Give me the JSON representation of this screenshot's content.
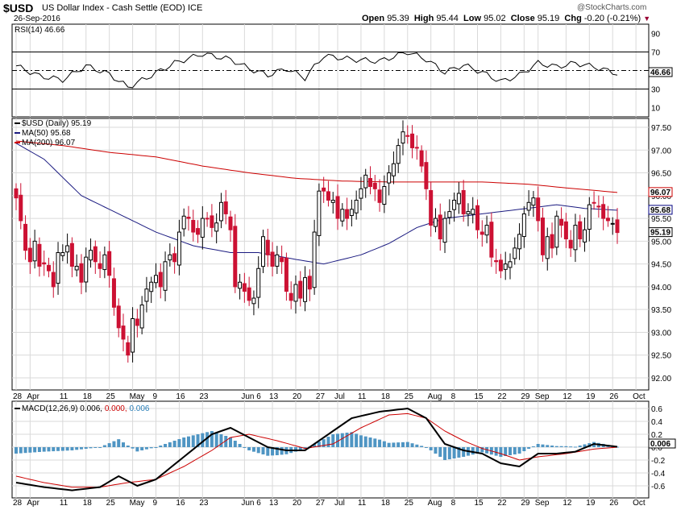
{
  "header": {
    "symbol": "$USD",
    "name": "US Dollar Index - Cash Settle (EOD) ICE",
    "date": "26-Sep-2016",
    "watermark": "@StockCharts.com",
    "stats": [
      {
        "label": "Open",
        "value": "95.39"
      },
      {
        "label": "High",
        "value": "95.44"
      },
      {
        "label": "Low",
        "value": "95.02"
      },
      {
        "label": "Close",
        "value": "95.19"
      },
      {
        "label": "Chg",
        "value": "-0.20 (-0.21%)"
      }
    ]
  },
  "rsi": {
    "label": "RSI(14) 46.66",
    "value_box": "46.66",
    "color": "#000000",
    "ref_color": "#000000"
  },
  "price_legend": {
    "main": "$USD (Daily) 95.19",
    "ma50": "MA(50) 95.68",
    "ma200": "MA(200) 96.07"
  },
  "macd": {
    "label": "MACD(12,26,9)",
    "v1": "0.006,",
    "v2": "0.000,",
    "v3": "0.006"
  },
  "price_boxes": [
    {
      "text": "96.07",
      "value": 96.07,
      "fill": "#ffffff",
      "stroke": "#cc0000"
    },
    {
      "text": "95.68",
      "value": 95.68,
      "fill": "#ffffff",
      "stroke": "#000080"
    },
    {
      "text": "95.19",
      "value": 95.19,
      "fill": "#ffffff",
      "stroke": "#000000"
    }
  ],
  "macd_box": {
    "text": "0.006",
    "value": 0.006
  },
  "colors": {
    "up": "#000000",
    "down": "#cc1133",
    "ma50": "#1a1a80",
    "ma200": "#cc0000",
    "macd": "#000000",
    "signal": "#cc0000",
    "hist": "#4f95c3",
    "grid": "#d9d9d9"
  },
  "chart_data": {
    "type": "candlestick",
    "title": "$USD US Dollar Index - Cash Settle (EOD) ICE",
    "x_ticks": [
      {
        "label": "28",
        "i": 0
      },
      {
        "label": "Apr",
        "i": 3
      },
      {
        "label": "11",
        "i": 10
      },
      {
        "label": "18",
        "i": 15
      },
      {
        "label": "25",
        "i": 20
      },
      {
        "label": "May",
        "i": 25
      },
      {
        "label": "9",
        "i": 30
      },
      {
        "label": "16",
        "i": 35
      },
      {
        "label": "23",
        "i": 40
      },
      {
        "label": "Jun 6",
        "i": 49
      },
      {
        "label": "13",
        "i": 55
      },
      {
        "label": "20",
        "i": 60
      },
      {
        "label": "27",
        "i": 65
      },
      {
        "label": "Jul",
        "i": 69
      },
      {
        "label": "11",
        "i": 74
      },
      {
        "label": "18",
        "i": 79
      },
      {
        "label": "25",
        "i": 84
      },
      {
        "label": "Aug",
        "i": 89
      },
      {
        "label": "8",
        "i": 94
      },
      {
        "label": "15",
        "i": 99
      },
      {
        "label": "22",
        "i": 104
      },
      {
        "label": "29",
        "i": 109
      },
      {
        "label": "Sep",
        "i": 112
      },
      {
        "label": "12",
        "i": 118
      },
      {
        "label": "19",
        "i": 123
      },
      {
        "label": "26",
        "i": 128
      },
      {
        "label": "Oct",
        "i": 133
      }
    ],
    "price_axis": {
      "min": 92.0,
      "max": 97.5,
      "step": 0.5
    },
    "rsi_axis": {
      "ticks": [
        10,
        30,
        50,
        70,
        90
      ],
      "overbought": 70,
      "oversold": 30
    },
    "macd_axis": {
      "ticks": [
        0.6,
        0.4,
        0.2,
        0.0,
        -0.2,
        -0.4,
        -0.6
      ]
    },
    "closes": [
      95.95,
      95.45,
      94.8,
      94.55,
      95.0,
      94.45,
      94.5,
      94.35,
      94.0,
      94.75,
      94.75,
      94.9,
      94.45,
      94.45,
      94.1,
      94.65,
      94.8,
      94.55,
      94.4,
      94.7,
      94.25,
      93.55,
      93.1,
      92.85,
      92.5,
      93.3,
      93.15,
      93.6,
      93.95,
      94.1,
      94.25,
      94.0,
      94.55,
      94.7,
      94.55,
      95.2,
      95.55,
      95.5,
      95.2,
      95.15,
      95.5,
      95.5,
      95.3,
      95.4,
      95.85,
      95.6,
      95.25,
      94.0,
      94.1,
      93.9,
      93.7,
      93.75,
      94.4,
      95.1,
      94.7,
      94.45,
      94.7,
      94.55,
      93.9,
      93.7,
      94.05,
      93.75,
      94.2,
      93.95,
      95.2,
      96.1,
      96.1,
      95.9,
      95.9,
      95.5,
      95.7,
      95.5,
      95.7,
      95.9,
      96.15,
      96.45,
      96.2,
      96.15,
      95.85,
      96.2,
      96.5,
      96.7,
      97.1,
      97.4,
      97.3,
      97.05,
      97.05,
      96.65,
      96.15,
      95.35,
      95.5,
      95.05,
      95.5,
      95.65,
      95.9,
      96.05,
      95.6,
      95.65,
      95.7,
      95.25,
      95.15,
      95.35,
      94.65,
      94.55,
      94.35,
      94.5,
      94.55,
      94.85,
      95.15,
      95.6,
      95.85,
      95.95,
      95.45,
      94.7,
      95.1,
      94.85,
      95.55,
      95.35,
      95.05,
      94.85,
      95.35,
      95.05,
      95.25,
      95.8,
      95.85,
      95.75,
      95.5,
      95.45,
      95.39,
      95.19
    ],
    "ma50_start": 97.15,
    "ma50_knots": [
      [
        0,
        97.15
      ],
      [
        6,
        96.8
      ],
      [
        14,
        96.0
      ],
      [
        22,
        95.6
      ],
      [
        30,
        95.2
      ],
      [
        38,
        94.9
      ],
      [
        46,
        94.75
      ],
      [
        52,
        94.75
      ],
      [
        60,
        94.6
      ],
      [
        66,
        94.5
      ],
      [
        74,
        94.7
      ],
      [
        80,
        94.95
      ],
      [
        86,
        95.3
      ],
      [
        92,
        95.5
      ],
      [
        100,
        95.6
      ],
      [
        108,
        95.7
      ],
      [
        116,
        95.8
      ],
      [
        122,
        95.72
      ],
      [
        129,
        95.68
      ]
    ],
    "ma200_knots": [
      [
        0,
        97.2
      ],
      [
        10,
        97.1
      ],
      [
        20,
        96.95
      ],
      [
        30,
        96.85
      ],
      [
        40,
        96.65
      ],
      [
        50,
        96.5
      ],
      [
        60,
        96.38
      ],
      [
        70,
        96.32
      ],
      [
        80,
        96.3
      ],
      [
        90,
        96.3
      ],
      [
        100,
        96.3
      ],
      [
        110,
        96.25
      ],
      [
        120,
        96.15
      ],
      [
        129,
        96.07
      ]
    ],
    "rsi_knots": [
      [
        0,
        55
      ],
      [
        5,
        44
      ],
      [
        10,
        40
      ],
      [
        15,
        55
      ],
      [
        20,
        46
      ],
      [
        24,
        32
      ],
      [
        28,
        42
      ],
      [
        34,
        58
      ],
      [
        40,
        68
      ],
      [
        46,
        62
      ],
      [
        50,
        52
      ],
      [
        54,
        45
      ],
      [
        58,
        52
      ],
      [
        62,
        42
      ],
      [
        66,
        66
      ],
      [
        72,
        62
      ],
      [
        78,
        60
      ],
      [
        84,
        70
      ],
      [
        88,
        62
      ],
      [
        92,
        48
      ],
      [
        96,
        56
      ],
      [
        100,
        48
      ],
      [
        104,
        38
      ],
      [
        108,
        45
      ],
      [
        112,
        58
      ],
      [
        116,
        54
      ],
      [
        120,
        58
      ],
      [
        124,
        54
      ],
      [
        129,
        46.66
      ]
    ],
    "macd_knots": [
      [
        0,
        -0.55
      ],
      [
        6,
        -0.62
      ],
      [
        12,
        -0.67
      ],
      [
        18,
        -0.62
      ],
      [
        22,
        -0.45
      ],
      [
        26,
        -0.6
      ],
      [
        30,
        -0.5
      ],
      [
        36,
        -0.15
      ],
      [
        42,
        0.2
      ],
      [
        46,
        0.3
      ],
      [
        50,
        0.15
      ],
      [
        54,
        0.0
      ],
      [
        58,
        -0.05
      ],
      [
        62,
        -0.05
      ],
      [
        66,
        0.15
      ],
      [
        72,
        0.45
      ],
      [
        78,
        0.55
      ],
      [
        84,
        0.6
      ],
      [
        88,
        0.45
      ],
      [
        92,
        0.05
      ],
      [
        96,
        -0.05
      ],
      [
        100,
        -0.1
      ],
      [
        104,
        -0.25
      ],
      [
        108,
        -0.3
      ],
      [
        112,
        -0.1
      ],
      [
        116,
        -0.1
      ],
      [
        120,
        -0.07
      ],
      [
        124,
        0.05
      ],
      [
        129,
        0.006
      ]
    ],
    "signal_knots": [
      [
        0,
        -0.45
      ],
      [
        6,
        -0.55
      ],
      [
        12,
        -0.62
      ],
      [
        18,
        -0.62
      ],
      [
        24,
        -0.55
      ],
      [
        30,
        -0.5
      ],
      [
        36,
        -0.3
      ],
      [
        42,
        -0.05
      ],
      [
        46,
        0.15
      ],
      [
        50,
        0.2
      ],
      [
        56,
        0.1
      ],
      [
        62,
        -0.02
      ],
      [
        68,
        0.05
      ],
      [
        74,
        0.3
      ],
      [
        80,
        0.5
      ],
      [
        84,
        0.52
      ],
      [
        88,
        0.45
      ],
      [
        92,
        0.25
      ],
      [
        96,
        0.1
      ],
      [
        100,
        -0.02
      ],
      [
        104,
        -0.1
      ],
      [
        108,
        -0.2
      ],
      [
        112,
        -0.15
      ],
      [
        118,
        -0.1
      ],
      [
        124,
        -0.03
      ],
      [
        129,
        0.0
      ]
    ]
  }
}
